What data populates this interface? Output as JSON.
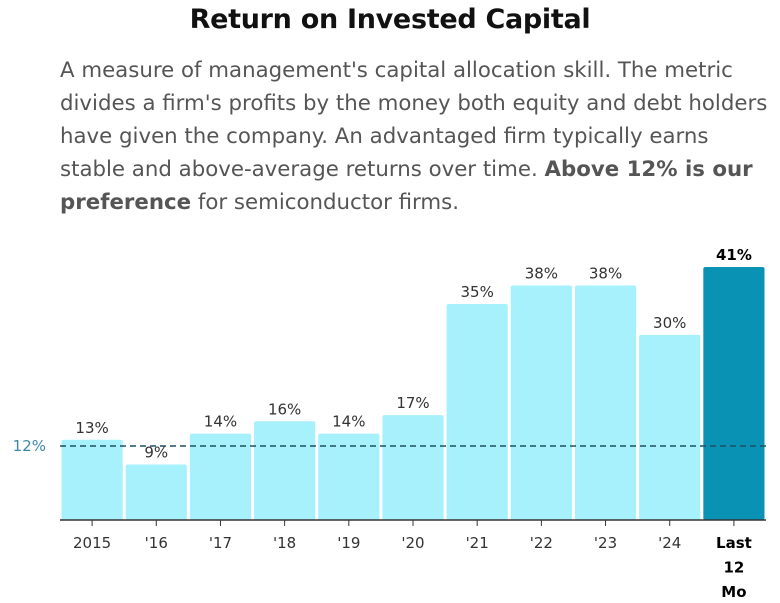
{
  "header": {
    "title": "Return on Invested Capital",
    "desc_before": "A measure of management's capital allocation skill. The metric divides a firm's profits by the money both equity and debt holders have given the company. An advantaged firm typically earns stable and above-average returns over time.",
    "desc_bold": "Above 12% is our preference",
    "desc_after": "for semiconductor firms."
  },
  "chart_data": {
    "type": "bar",
    "title": "Return on Invested Capital",
    "categories": [
      "2015",
      "'16",
      "'17",
      "'18",
      "'19",
      "'20",
      "'21",
      "'22",
      "'23",
      "'24",
      "Last 12 Mo"
    ],
    "values": [
      13,
      9,
      14,
      16,
      14,
      17,
      35,
      38,
      38,
      30,
      41
    ],
    "value_labels": [
      "13%",
      "9%",
      "14%",
      "16%",
      "14%",
      "17%",
      "35%",
      "38%",
      "38%",
      "30%",
      "41%"
    ],
    "highlight_index": 10,
    "reference_line": {
      "value": 12,
      "label": "12%",
      "style": "dashed"
    },
    "ylim": [
      0,
      41
    ],
    "xlabel": "",
    "ylabel": "",
    "colors": {
      "bar": "#a6f1fb",
      "highlight": "#0a92b4",
      "reference": "#1d5060",
      "axis": "#333333"
    }
  }
}
